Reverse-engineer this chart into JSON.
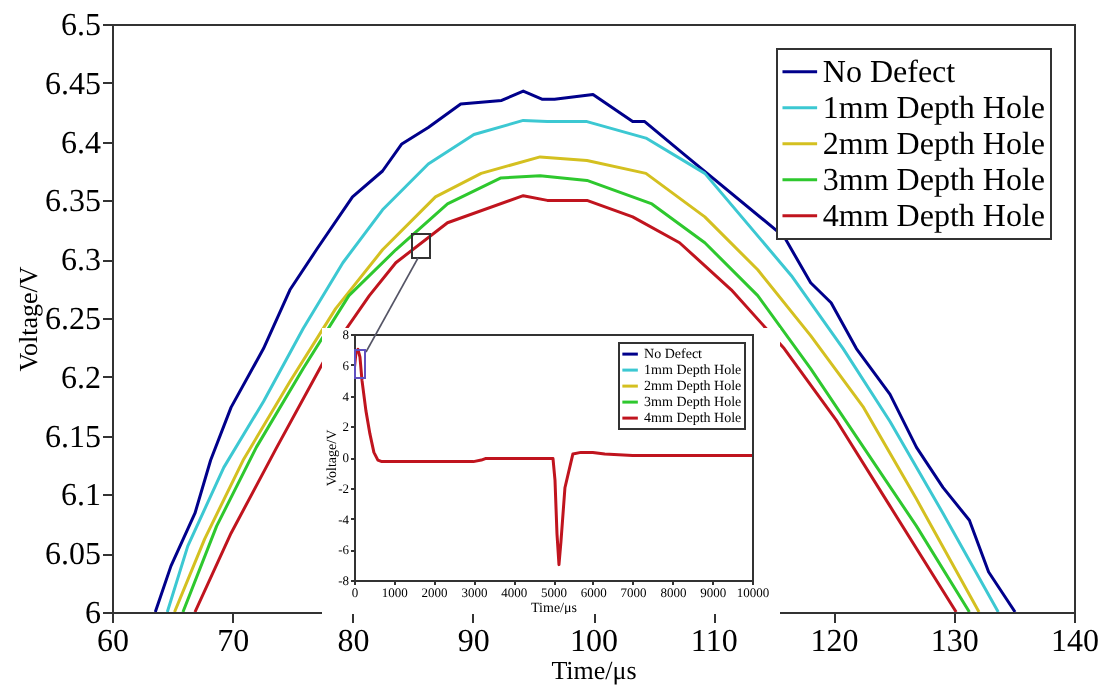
{
  "chart_data": [
    {
      "type": "line",
      "xlabel": "Time/μs",
      "ylabel": "Voltage/V",
      "xlim": [
        60,
        140
      ],
      "ylim": [
        6,
        6.5
      ],
      "xticks": [
        60,
        70,
        80,
        90,
        100,
        110,
        120,
        130,
        140
      ],
      "yticks": [
        6,
        6.05,
        6.1,
        6.15,
        6.2,
        6.25,
        6.3,
        6.35,
        6.4,
        6.45,
        6.5
      ],
      "legend": "top right",
      "series": [
        {
          "name": "No Defect",
          "color": "#00008b",
          "x": [
            63.6,
            64.9,
            66.9,
            68.2,
            69.9,
            72.6,
            74.8,
            77.0,
            80.0,
            82.5,
            84.1,
            86.3,
            89.0,
            92.4,
            94.2,
            95.8,
            96.8,
            100.0,
            103.3,
            104.3,
            107.6,
            115.9,
            118.1,
            119.8,
            121.9,
            124.7,
            126.9,
            129.1,
            131.3,
            132.9,
            135.1
          ],
          "values": [
            6.0,
            6.039,
            6.084,
            6.129,
            6.174,
            6.224,
            6.274,
            6.308,
            6.353,
            6.375,
            6.398,
            6.412,
            6.432,
            6.435,
            6.443,
            6.436,
            6.436,
            6.44,
            6.417,
            6.417,
            6.389,
            6.319,
            6.28,
            6.263,
            6.224,
            6.185,
            6.14,
            6.106,
            6.078,
            6.034,
            6.0
          ]
        },
        {
          "name": "1mm Depth Hole",
          "color": "#3cc8d2",
          "x": [
            64.6,
            66.3,
            69.3,
            72.6,
            75.9,
            79.2,
            82.5,
            86.3,
            90.1,
            94.2,
            96.2,
            99.5,
            104.4,
            109.3,
            116.5,
            120.8,
            124.7,
            129.1,
            133.7
          ],
          "values": [
            6.0,
            6.056,
            6.123,
            6.179,
            6.241,
            6.297,
            6.342,
            6.381,
            6.406,
            6.418,
            6.417,
            6.417,
            6.403,
            6.373,
            6.286,
            6.224,
            6.162,
            6.084,
            6.0
          ]
        },
        {
          "name": "2mm Depth Hole",
          "color": "#d4c020",
          "x": [
            65.2,
            67.7,
            70.9,
            74.8,
            78.6,
            82.5,
            86.9,
            90.7,
            95.6,
            99.5,
            104.4,
            109.3,
            113.7,
            118.1,
            122.5,
            126.9,
            132.1
          ],
          "values": [
            6.0,
            6.062,
            6.129,
            6.196,
            6.258,
            6.308,
            6.353,
            6.373,
            6.387,
            6.384,
            6.373,
            6.336,
            6.291,
            6.235,
            6.174,
            6.096,
            6.0
          ]
        },
        {
          "name": "3mm Depth Hole",
          "color": "#2ec82e",
          "x": [
            65.9,
            68.7,
            72.0,
            75.9,
            79.7,
            83.6,
            87.9,
            92.3,
            95.6,
            99.5,
            104.9,
            109.3,
            113.7,
            118.1,
            122.5,
            126.9,
            131.3
          ],
          "values": [
            6.0,
            6.073,
            6.14,
            6.207,
            6.269,
            6.308,
            6.347,
            6.369,
            6.371,
            6.367,
            6.347,
            6.314,
            6.269,
            6.207,
            6.14,
            6.073,
            6.0
          ]
        },
        {
          "name": "4mm Depth Hole",
          "color": "#c0141e",
          "x": [
            66.9,
            69.9,
            73.7,
            77.6,
            81.4,
            83.6,
            87.9,
            94.2,
            96.2,
            99.5,
            103.3,
            107.2,
            111.5,
            115.9,
            120.3,
            124.7,
            130.2
          ],
          "values": [
            6.0,
            6.067,
            6.14,
            6.213,
            6.269,
            6.297,
            6.331,
            6.354,
            6.35,
            6.35,
            6.336,
            6.314,
            6.274,
            6.224,
            6.162,
            6.09,
            6.0
          ]
        }
      ]
    },
    {
      "type": "line",
      "xlabel": "Time/μs",
      "ylabel": "Voltage/V",
      "xlim": [
        0,
        10000
      ],
      "ylim": [
        -8,
        8
      ],
      "xticks": [
        0,
        1000,
        2000,
        3000,
        4000,
        5000,
        6000,
        7000,
        8000,
        9000,
        10000
      ],
      "yticks": [
        -8,
        -6,
        -4,
        -2,
        0,
        2,
        4,
        6,
        8
      ],
      "legend": "top right",
      "series": [
        {
          "name": "No Defect",
          "color": "#00008b"
        },
        {
          "name": "1mm Depth Hole",
          "color": "#3cc8d2"
        },
        {
          "name": "2mm Depth Hole",
          "color": "#d4c020"
        },
        {
          "name": "3mm Depth Hole",
          "color": "#2ec82e"
        },
        {
          "name": "4mm Depth Hole",
          "color": "#c0141e",
          "x": [
            0,
            50,
            100,
            150,
            200,
            300,
            400,
            500,
            600,
            700,
            1000,
            2000,
            3000,
            3200,
            3300,
            4000,
            5000,
            5050,
            5100,
            5150,
            5200,
            5300,
            5500,
            5700,
            6000,
            6300,
            7000,
            8000,
            9000,
            10000
          ],
          "values": [
            5.5,
            6.8,
            7.0,
            6.5,
            5.0,
            3.0,
            1.5,
            0.3,
            -0.2,
            -0.3,
            -0.3,
            -0.3,
            -0.3,
            -0.2,
            -0.1,
            -0.1,
            -0.1,
            -1.5,
            -5.0,
            -7.0,
            -5.5,
            -2.0,
            0.2,
            0.3,
            0.3,
            0.2,
            0.1,
            0.1,
            0.1,
            0.1
          ]
        }
      ]
    }
  ]
}
